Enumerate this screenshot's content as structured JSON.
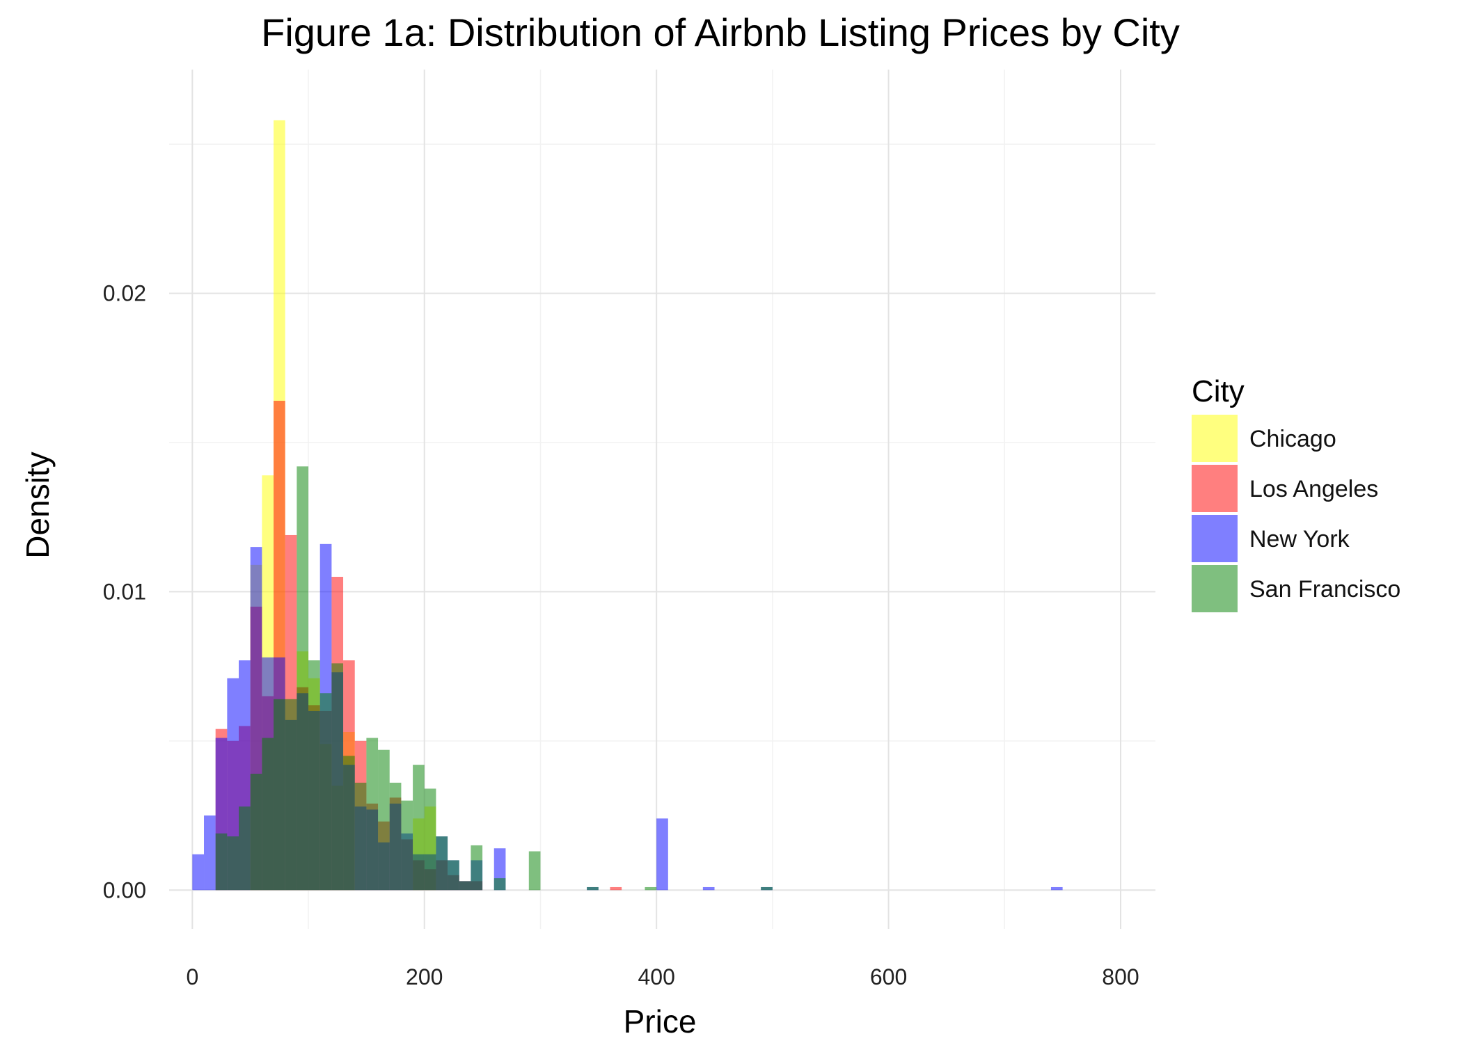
{
  "chart_data": {
    "type": "bar",
    "subtype": "overlapping-histogram",
    "title": "Figure 1a: Distribution of Airbnb Listing Prices by City",
    "xlabel": "Price",
    "ylabel": "Density",
    "xlim": [
      -20,
      830
    ],
    "ylim": [
      -0.0013,
      0.0275
    ],
    "x_ticks": [
      0,
      200,
      400,
      600,
      800
    ],
    "x_tick_labels": [
      "0",
      "200",
      "400",
      "600",
      "800"
    ],
    "y_ticks": [
      0,
      0.01,
      0.02
    ],
    "y_tick_labels": [
      "0.00",
      "0.01",
      "0.02"
    ],
    "x_minor_ticks": [
      100,
      300,
      500,
      700
    ],
    "y_minor_ticks": [
      0.005,
      0.015,
      0.025
    ],
    "bin_width": 10,
    "grid": true,
    "legend": {
      "title": "City",
      "position": "right"
    },
    "series": [
      {
        "name": "Chicago",
        "color": "#FFFF00",
        "bins": [
          [
            50,
            0.0109
          ],
          [
            60,
            0.0139
          ],
          [
            70,
            0.0258
          ],
          [
            80,
            0.0057
          ],
          [
            90,
            0.008
          ],
          [
            100,
            0.0071
          ],
          [
            110,
            0.0049
          ],
          [
            120,
            0.0035
          ],
          [
            130,
            0.0053
          ],
          [
            190,
            0.0024
          ],
          [
            200,
            0.0028
          ]
        ]
      },
      {
        "name": "Los Angeles",
        "color": "#FF0000",
        "bins": [
          [
            20,
            0.0054
          ],
          [
            30,
            0.005
          ],
          [
            40,
            0.0055
          ],
          [
            50,
            0.0095
          ],
          [
            60,
            0.0065
          ],
          [
            70,
            0.0164
          ],
          [
            80,
            0.0119
          ],
          [
            90,
            0.0068
          ],
          [
            100,
            0.0062
          ],
          [
            110,
            0.006
          ],
          [
            120,
            0.0105
          ],
          [
            130,
            0.0077
          ],
          [
            140,
            0.005
          ],
          [
            150,
            0.0029
          ],
          [
            160,
            0.0023
          ],
          [
            170,
            0.0031
          ],
          [
            180,
            0.0017
          ],
          [
            190,
            0.001
          ],
          [
            200,
            0.0007
          ],
          [
            210,
            0.001
          ],
          [
            220,
            0.0005
          ],
          [
            230,
            0.0003
          ],
          [
            240,
            0.0003
          ],
          [
            360,
            0.0001
          ]
        ]
      },
      {
        "name": "New York",
        "color": "#0000FF",
        "bins": [
          [
            0,
            0.0012
          ],
          [
            10,
            0.0025
          ],
          [
            20,
            0.0051
          ],
          [
            30,
            0.0071
          ],
          [
            40,
            0.0077
          ],
          [
            50,
            0.0115
          ],
          [
            60,
            0.0078
          ],
          [
            70,
            0.0078
          ],
          [
            80,
            0.0057
          ],
          [
            90,
            0.0066
          ],
          [
            100,
            0.006
          ],
          [
            110,
            0.0116
          ],
          [
            120,
            0.0073
          ],
          [
            130,
            0.0042
          ],
          [
            140,
            0.0028
          ],
          [
            150,
            0.0027
          ],
          [
            160,
            0.0016
          ],
          [
            170,
            0.0029
          ],
          [
            180,
            0.0019
          ],
          [
            190,
            0.0012
          ],
          [
            200,
            0.0012
          ],
          [
            210,
            0.0018
          ],
          [
            220,
            0.001
          ],
          [
            230,
            0.0003
          ],
          [
            240,
            0.001
          ],
          [
            260,
            0.0014
          ],
          [
            340,
            0.0001
          ],
          [
            400,
            0.0024
          ],
          [
            440,
            0.0001
          ],
          [
            490,
            0.0001
          ],
          [
            740,
            0.0001
          ]
        ]
      },
      {
        "name": "San Francisco",
        "color": "#008000",
        "bins": [
          [
            20,
            0.0019
          ],
          [
            30,
            0.0018
          ],
          [
            40,
            0.0028
          ],
          [
            50,
            0.0039
          ],
          [
            60,
            0.0051
          ],
          [
            70,
            0.0064
          ],
          [
            80,
            0.0064
          ],
          [
            90,
            0.0142
          ],
          [
            100,
            0.0077
          ],
          [
            110,
            0.0066
          ],
          [
            120,
            0.0076
          ],
          [
            130,
            0.0045
          ],
          [
            140,
            0.0036
          ],
          [
            150,
            0.0051
          ],
          [
            160,
            0.0047
          ],
          [
            170,
            0.0036
          ],
          [
            180,
            0.003
          ],
          [
            190,
            0.0042
          ],
          [
            200,
            0.0034
          ],
          [
            210,
            0.0018
          ],
          [
            220,
            0.001
          ],
          [
            230,
            0.0003
          ],
          [
            240,
            0.0015
          ],
          [
            260,
            0.0004
          ],
          [
            290,
            0.0013
          ],
          [
            340,
            0.0001
          ],
          [
            390,
            0.0001
          ],
          [
            490,
            0.0001
          ]
        ]
      }
    ]
  }
}
